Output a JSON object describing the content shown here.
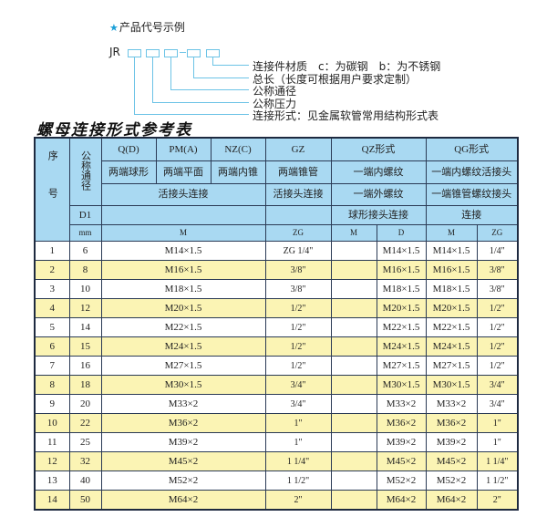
{
  "code_example": {
    "star_icon": "star-icon",
    "title": "产品代号示例",
    "prefix": "JR",
    "labels": [
      "连接件材质　c：为碳钢　b：为不锈钢",
      "总长（长度可根据用户要求定制）",
      "公称通径",
      "公称压力",
      "连接形式：见金属软管常用结构形式表"
    ]
  },
  "table_title": "螺母连接形式参考表",
  "header": {
    "seq": "序号",
    "nominal": "公称通径",
    "d1": "D1",
    "mm": "mm",
    "q": "Q(D)",
    "pm": "PM(A)",
    "nz": "NZ(C)",
    "gz": "GZ",
    "qz": "QZ形式",
    "qg": "QG形式",
    "q_desc": "两端球形",
    "pm_desc": "两端平面",
    "nz_desc": "两端内锥",
    "gz_desc": "两端锥管",
    "qz_desc": "一端内螺纹",
    "qg_desc": "一端内螺纹活接头",
    "union": "活接头连接",
    "gz_conn": "活接头连接",
    "qz_conn1": "一端外螺纹",
    "qg_conn1": "一端锥管螺纹接头",
    "qz_conn2": "球形接头连接",
    "qg_conn2": "连接",
    "m": "M",
    "zg": "ZG",
    "qz_m": "M",
    "qz_d": "D",
    "qg_m": "M",
    "qg_zg": "ZG"
  },
  "rows": [
    {
      "no": "1",
      "dn": "6",
      "m": "M14×1.5",
      "zg": "ZG 1/4\"",
      "qz_d": "M14×1.5",
      "qg_m": "M14×1.5",
      "qg_zg": "1/4\""
    },
    {
      "no": "2",
      "dn": "8",
      "m": "M16×1.5",
      "zg": "3/8\"",
      "qz_d": "M16×1.5",
      "qg_m": "M16×1.5",
      "qg_zg": "3/8\""
    },
    {
      "no": "3",
      "dn": "10",
      "m": "M18×1.5",
      "zg": "3/8\"",
      "qz_d": "M18×1.5",
      "qg_m": "M18×1.5",
      "qg_zg": "3/8\""
    },
    {
      "no": "4",
      "dn": "12",
      "m": "M20×1.5",
      "zg": "1/2\"",
      "qz_d": "M20×1.5",
      "qg_m": "M20×1.5",
      "qg_zg": "1/2\""
    },
    {
      "no": "5",
      "dn": "14",
      "m": "M22×1.5",
      "zg": "1/2\"",
      "qz_d": "M22×1.5",
      "qg_m": "M22×1.5",
      "qg_zg": "1/2\""
    },
    {
      "no": "6",
      "dn": "15",
      "m": "M24×1.5",
      "zg": "1/2\"",
      "qz_d": "M24×1.5",
      "qg_m": "M24×1.5",
      "qg_zg": "1/2\""
    },
    {
      "no": "7",
      "dn": "16",
      "m": "M27×1.5",
      "zg": "1/2\"",
      "qz_d": "M27×1.5",
      "qg_m": "M27×1.5",
      "qg_zg": "1/2\""
    },
    {
      "no": "8",
      "dn": "18",
      "m": "M30×1.5",
      "zg": "3/4\"",
      "qz_d": "M30×1.5",
      "qg_m": "M30×1.5",
      "qg_zg": "3/4\""
    },
    {
      "no": "9",
      "dn": "20",
      "m": "M33×2",
      "zg": "3/4\"",
      "qz_d": "M33×2",
      "qg_m": "M33×2",
      "qg_zg": "3/4\""
    },
    {
      "no": "10",
      "dn": "22",
      "m": "M36×2",
      "zg": "1\"",
      "qz_d": "M36×2",
      "qg_m": "M36×2",
      "qg_zg": "1\""
    },
    {
      "no": "11",
      "dn": "25",
      "m": "M39×2",
      "zg": "1\"",
      "qz_d": "M39×2",
      "qg_m": "M39×2",
      "qg_zg": "1\""
    },
    {
      "no": "12",
      "dn": "32",
      "m": "M45×2",
      "zg": "1 1/4\"",
      "qz_d": "M45×2",
      "qg_m": "M45×2",
      "qg_zg": "1 1/4\""
    },
    {
      "no": "13",
      "dn": "40",
      "m": "M52×2",
      "zg": "1 1/2\"",
      "qz_d": "M52×2",
      "qg_m": "M52×2",
      "qg_zg": "1 1/2\""
    },
    {
      "no": "14",
      "dn": "50",
      "m": "M64×2",
      "zg": "2\"",
      "qz_d": "M64×2",
      "qg_m": "M64×2",
      "qg_zg": "2\""
    }
  ],
  "colors": {
    "header_bg": "#a9d9f2",
    "alt_row": "#fbf4b4",
    "border": "#2a3a55",
    "accent": "#1a9fd8"
  }
}
